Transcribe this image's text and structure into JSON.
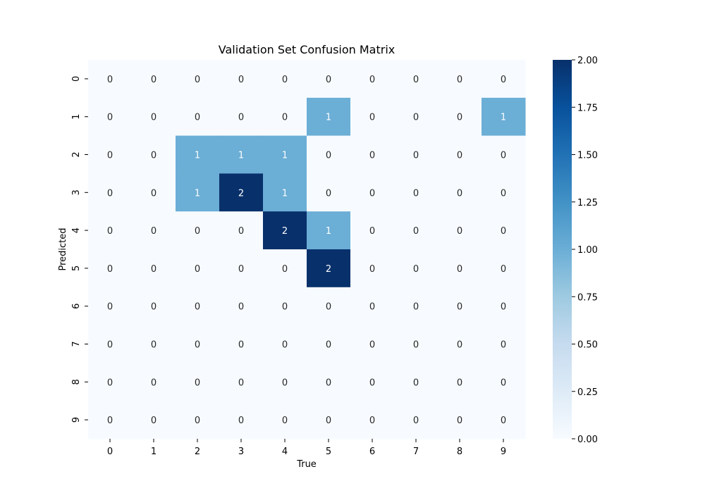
{
  "chart_data": {
    "type": "heatmap",
    "title": "Validation Set Confusion Matrix",
    "xlabel": "True",
    "ylabel": "Predicted",
    "x_categories": [
      "0",
      "1",
      "2",
      "3",
      "4",
      "5",
      "6",
      "7",
      "8",
      "9"
    ],
    "y_categories": [
      "0",
      "1",
      "2",
      "3",
      "4",
      "5",
      "6",
      "7",
      "8",
      "9"
    ],
    "values": [
      [
        0,
        0,
        0,
        0,
        0,
        0,
        0,
        0,
        0,
        0
      ],
      [
        0,
        0,
        0,
        0,
        0,
        1,
        0,
        0,
        0,
        1
      ],
      [
        0,
        0,
        1,
        1,
        1,
        0,
        0,
        0,
        0,
        0
      ],
      [
        0,
        0,
        1,
        2,
        1,
        0,
        0,
        0,
        0,
        0
      ],
      [
        0,
        0,
        0,
        0,
        2,
        1,
        0,
        0,
        0,
        0
      ],
      [
        0,
        0,
        0,
        0,
        0,
        2,
        0,
        0,
        0,
        0
      ],
      [
        0,
        0,
        0,
        0,
        0,
        0,
        0,
        0,
        0,
        0
      ],
      [
        0,
        0,
        0,
        0,
        0,
        0,
        0,
        0,
        0,
        0
      ],
      [
        0,
        0,
        0,
        0,
        0,
        0,
        0,
        0,
        0,
        0
      ],
      [
        0,
        0,
        0,
        0,
        0,
        0,
        0,
        0,
        0,
        0
      ]
    ],
    "colorbar": {
      "colormap": "Blues",
      "range": [
        0.0,
        2.0
      ],
      "tick_labels": [
        "0.00",
        "0.25",
        "0.50",
        "0.75",
        "1.00",
        "1.25",
        "1.50",
        "1.75",
        "2.00"
      ],
      "tick_values": [
        0.0,
        0.25,
        0.5,
        0.75,
        1.0,
        1.25,
        1.5,
        1.75,
        2.0
      ]
    },
    "grid": false,
    "annotations": true
  }
}
